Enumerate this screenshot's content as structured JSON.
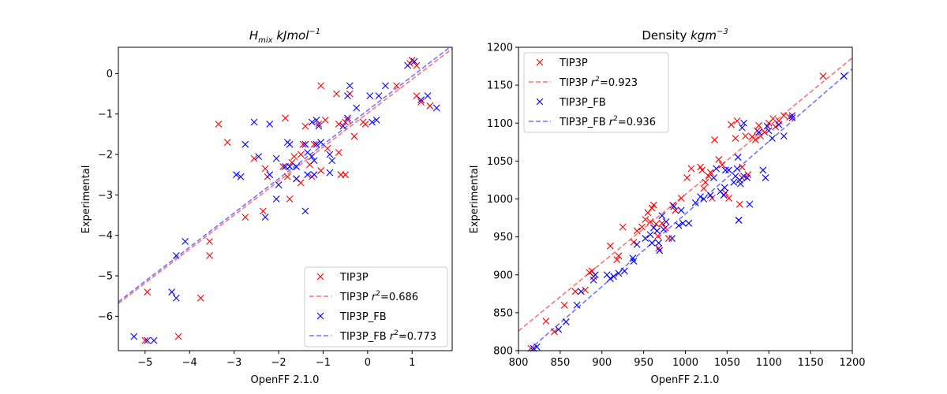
{
  "chart_data": [
    {
      "type": "scatter",
      "title": "H_mix kJmol^-1",
      "title_parts": {
        "base": "H",
        "sub": "mix",
        "unit": " kJmol",
        "sup": "−1"
      },
      "xlabel": "OpenFF 2.1.0",
      "ylabel": "Experimental",
      "xlim": [
        -5.6,
        1.9
      ],
      "ylim": [
        -6.85,
        0.65
      ],
      "xticks": [
        -5,
        -4,
        -3,
        -2,
        -1,
        0,
        1
      ],
      "yticks": [
        -6,
        -5,
        -4,
        -3,
        -2,
        -1,
        0
      ],
      "grid": false,
      "legend_position": "lower-right",
      "series": [
        {
          "name": "TIP3P",
          "color": "#ff0000",
          "marker": "x",
          "points": [
            [
              1.0,
              0.33
            ],
            [
              0.95,
              0.25
            ],
            [
              1.1,
              0.2
            ],
            [
              0.65,
              -0.3
            ],
            [
              1.1,
              -0.55
            ],
            [
              1.2,
              -0.7
            ],
            [
              1.4,
              -0.8
            ],
            [
              -1.05,
              -0.3
            ],
            [
              -0.4,
              -0.5
            ],
            [
              -0.7,
              -0.5
            ],
            [
              -0.5,
              -1.2
            ],
            [
              -0.65,
              -1.25
            ],
            [
              -0.45,
              -1.15
            ],
            [
              -0.95,
              -1.15
            ],
            [
              -0.1,
              -1.2
            ],
            [
              -0.05,
              -1.25
            ],
            [
              -0.3,
              -1.55
            ],
            [
              -1.1,
              -1.25
            ],
            [
              -1.4,
              -1.3
            ],
            [
              -1.85,
              -1.1
            ],
            [
              -3.35,
              -1.25
            ],
            [
              -3.15,
              -1.7
            ],
            [
              -1.2,
              -1.75
            ],
            [
              -1.45,
              -1.75
            ],
            [
              -0.65,
              -1.95
            ],
            [
              -1.65,
              -2.05
            ],
            [
              -1.9,
              -2.3
            ],
            [
              -2.55,
              -2.1
            ],
            [
              -2.3,
              -2.35
            ],
            [
              -1.5,
              -2.7
            ],
            [
              -1.25,
              -2.55
            ],
            [
              -1.05,
              -2.4
            ],
            [
              -1.6,
              -2.6
            ],
            [
              -1.8,
              -2.55
            ],
            [
              -0.6,
              -2.5
            ],
            [
              -0.5,
              -2.5
            ],
            [
              -1.7,
              -2.2
            ],
            [
              -2.25,
              -2.55
            ],
            [
              -1.75,
              -3.1
            ],
            [
              -2.35,
              -3.4
            ],
            [
              -2.75,
              -3.55
            ],
            [
              -3.55,
              -4.15
            ],
            [
              -3.55,
              -4.5
            ],
            [
              -3.75,
              -5.55
            ],
            [
              -4.95,
              -5.4
            ],
            [
              -5.0,
              -6.6
            ],
            [
              -4.25,
              -6.5
            ],
            [
              -1.5,
              -2.0
            ],
            [
              -0.9,
              -1.85
            ],
            [
              -1.3,
              -2.25
            ]
          ]
        },
        {
          "name": "TIP3P_FB",
          "color": "#0000ff",
          "marker": "x",
          "points": [
            [
              1.05,
              0.3
            ],
            [
              0.9,
              0.2
            ],
            [
              1.2,
              -0.65
            ],
            [
              1.35,
              -0.55
            ],
            [
              1.55,
              -0.85
            ],
            [
              0.4,
              -0.3
            ],
            [
              0.25,
              -0.55
            ],
            [
              0.05,
              -0.55
            ],
            [
              -0.4,
              -0.3
            ],
            [
              -0.45,
              -0.55
            ],
            [
              -0.25,
              -0.85
            ],
            [
              -0.45,
              -1.1
            ],
            [
              -0.55,
              -1.3
            ],
            [
              0.1,
              -1.2
            ],
            [
              0.2,
              -1.15
            ],
            [
              -1.15,
              -1.15
            ],
            [
              -1.1,
              -1.3
            ],
            [
              -1.25,
              -1.2
            ],
            [
              -2.2,
              -1.25
            ],
            [
              -2.55,
              -1.2
            ],
            [
              -2.75,
              -1.75
            ],
            [
              -1.8,
              -1.7
            ],
            [
              -1.75,
              -1.75
            ],
            [
              -1.4,
              -1.75
            ],
            [
              -1.15,
              -1.75
            ],
            [
              -1.05,
              -1.7
            ],
            [
              -1.2,
              -2.15
            ],
            [
              -0.85,
              -2.0
            ],
            [
              -0.8,
              -2.15
            ],
            [
              -1.35,
              -1.95
            ],
            [
              -1.6,
              -2.3
            ],
            [
              -1.75,
              -2.3
            ],
            [
              -1.85,
              -2.3
            ],
            [
              -2.05,
              -2.1
            ],
            [
              -2.45,
              -2.05
            ],
            [
              -2.0,
              -2.75
            ],
            [
              -2.2,
              -2.5
            ],
            [
              -1.6,
              -2.6
            ],
            [
              -1.35,
              -2.5
            ],
            [
              -1.2,
              -2.5
            ],
            [
              -0.85,
              -2.45
            ],
            [
              -2.95,
              -2.5
            ],
            [
              -2.85,
              -2.55
            ],
            [
              -2.05,
              -3.1
            ],
            [
              -2.3,
              -3.55
            ],
            [
              -1.4,
              -3.4
            ],
            [
              -4.1,
              -4.15
            ],
            [
              -4.3,
              -4.5
            ],
            [
              -4.4,
              -5.4
            ],
            [
              -4.3,
              -5.55
            ],
            [
              -5.25,
              -6.5
            ],
            [
              -4.95,
              -6.6
            ],
            [
              -4.8,
              -6.6
            ],
            [
              -1.25,
              -2.05
            ]
          ]
        }
      ],
      "fits": [
        {
          "name": "TIP3P r^2=0.686",
          "label_base": "TIP3P ",
          "label_value": "=0.686",
          "r2": 0.686,
          "slope": 0.84,
          "intercept": -0.98,
          "color": "#ff0000"
        },
        {
          "name": "TIP3P_FB r^2=0.773",
          "label_base": "TIP3P_FB ",
          "label_value": "=0.773",
          "r2": 0.773,
          "slope": 0.845,
          "intercept": -0.91,
          "color": "#0000ff"
        }
      ]
    },
    {
      "type": "scatter",
      "title": "Density kgm^-3",
      "title_parts": {
        "base": "Density",
        "sub": "",
        "unit": " kgm",
        "sup": "−3"
      },
      "xlabel": "OpenFF 2.1.0",
      "ylabel": "Experimental",
      "xlim": [
        800,
        1200
      ],
      "ylim": [
        800,
        1200
      ],
      "xticks": [
        800,
        850,
        900,
        950,
        1000,
        1050,
        1100,
        1150,
        1200
      ],
      "yticks": [
        800,
        850,
        900,
        950,
        1000,
        1050,
        1100,
        1150,
        1200
      ],
      "grid": false,
      "legend_position": "top-left",
      "series": [
        {
          "name": "TIP3P",
          "color": "#ff0000",
          "marker": "x",
          "points": [
            [
              815,
              803
            ],
            [
              833,
              839
            ],
            [
              843,
              825
            ],
            [
              855,
              860
            ],
            [
              868,
              878
            ],
            [
              880,
              880
            ],
            [
              885,
              903
            ],
            [
              888,
              905
            ],
            [
              890,
              898
            ],
            [
              910,
              938
            ],
            [
              918,
              920
            ],
            [
              920,
              925
            ],
            [
              925,
              963
            ],
            [
              938,
              943
            ],
            [
              942,
              958
            ],
            [
              948,
              963
            ],
            [
              952,
              973
            ],
            [
              955,
              982
            ],
            [
              958,
              970
            ],
            [
              960,
              988
            ],
            [
              962,
              992
            ],
            [
              965,
              967
            ],
            [
              967,
              951
            ],
            [
              968,
              935
            ],
            [
              972,
              968
            ],
            [
              976,
              962
            ],
            [
              980,
              948
            ],
            [
              985,
              992
            ],
            [
              988,
              985
            ],
            [
              995,
              1001
            ],
            [
              1002,
              1028
            ],
            [
              1018,
              1042
            ],
            [
              1020,
              1038
            ],
            [
              1022,
              1014
            ],
            [
              1024,
              1022
            ],
            [
              1028,
              1030
            ],
            [
              1032,
              1001
            ],
            [
              1035,
              1078
            ],
            [
              1040,
              1052
            ],
            [
              1044,
              1045
            ],
            [
              1048,
              1008
            ],
            [
              1052,
              1001
            ],
            [
              1055,
              1098
            ],
            [
              1060,
              1080
            ],
            [
              1062,
              1103
            ],
            [
              1064,
              972
            ],
            [
              1065,
              993
            ],
            [
              1068,
              1042
            ],
            [
              1068,
              1028
            ],
            [
              1072,
              1083
            ],
            [
              1075,
              1032
            ],
            [
              1080,
              1082
            ],
            [
              1084,
              1078
            ],
            [
              1086,
              1090
            ],
            [
              1088,
              1097
            ],
            [
              1090,
              1083
            ],
            [
              1095,
              1088
            ],
            [
              1100,
              1100
            ],
            [
              1105,
              1106
            ],
            [
              1108,
              1095
            ],
            [
              1112,
              1103
            ],
            [
              1118,
              1110
            ],
            [
              1125,
              1108
            ],
            [
              1165,
              1162
            ],
            [
              1030,
              1035
            ],
            [
              1007,
              1040
            ]
          ]
        },
        {
          "name": "TIP3P_FB",
          "color": "#0000ff",
          "marker": "x",
          "points": [
            [
              818,
              803
            ],
            [
              822,
              805
            ],
            [
              848,
              828
            ],
            [
              857,
              838
            ],
            [
              870,
              860
            ],
            [
              875,
              878
            ],
            [
              890,
              893
            ],
            [
              892,
              900
            ],
            [
              906,
              900
            ],
            [
              910,
              895
            ],
            [
              914,
              898
            ],
            [
              920,
              902
            ],
            [
              927,
              905
            ],
            [
              937,
              922
            ],
            [
              938,
              918
            ],
            [
              942,
              940
            ],
            [
              952,
              948
            ],
            [
              958,
              953
            ],
            [
              960,
              942
            ],
            [
              962,
              962
            ],
            [
              966,
              958
            ],
            [
              968,
              942
            ],
            [
              969,
              932
            ],
            [
              972,
              978
            ],
            [
              974,
              960
            ],
            [
              977,
              970
            ],
            [
              984,
              948
            ],
            [
              986,
              990
            ],
            [
              992,
              965
            ],
            [
              995,
              985
            ],
            [
              997,
              968
            ],
            [
              1012,
              995
            ],
            [
              1018,
              1003
            ],
            [
              1022,
              1000
            ],
            [
              1030,
              1005
            ],
            [
              1034,
              1028
            ],
            [
              1037,
              1040
            ],
            [
              1042,
              1010
            ],
            [
              1046,
              1005
            ],
            [
              1048,
              1038
            ],
            [
              1052,
              1038
            ],
            [
              1058,
              1022
            ],
            [
              1060,
              1030
            ],
            [
              1062,
              1040
            ],
            [
              1063,
              1055
            ],
            [
              1064,
              972
            ],
            [
              1065,
              1025
            ],
            [
              1066,
              1020
            ],
            [
              1068,
              1094
            ],
            [
              1070,
              1100
            ],
            [
              1070,
              1030
            ],
            [
              1074,
              1028
            ],
            [
              1077,
              993
            ],
            [
              1088,
              1088
            ],
            [
              1093,
              1038
            ],
            [
              1096,
              1028
            ],
            [
              1098,
              1096
            ],
            [
              1100,
              1090
            ],
            [
              1104,
              1080
            ],
            [
              1112,
              1098
            ],
            [
              1118,
              1083
            ],
            [
              1128,
              1110
            ],
            [
              1128,
              1107
            ],
            [
              1190,
              1162
            ],
            [
              1004,
              968
            ],
            [
              1047,
              1015
            ]
          ]
        }
      ],
      "fits": [
        {
          "name": "TIP3P r^2=0.923",
          "label_base": "TIP3P ",
          "label_value": "=0.923",
          "r2": 0.923,
          "slope": 0.9,
          "intercept": 106.0,
          "color": "#ff0000"
        },
        {
          "name": "TIP3P_FB r^2=0.936",
          "label_base": "TIP3P_FB ",
          "label_value": "=0.936",
          "r2": 0.936,
          "slope": 0.957,
          "intercept": 23.2,
          "color": "#0000ff"
        }
      ]
    }
  ]
}
